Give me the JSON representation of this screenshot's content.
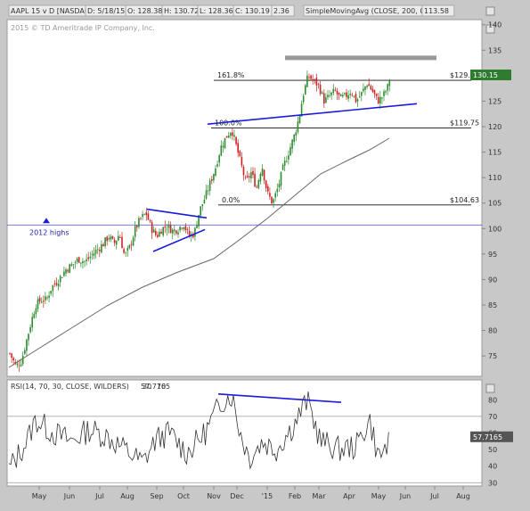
{
  "header": {
    "items": [
      "AAPL 15 v D [NASDAQ]",
      "D: 5/18/15",
      "O: 128.38",
      "H: 130.72",
      "L: 128.36",
      "C: 130.19",
      "2.36",
      "SimpleMovingAvg (CLOSE, 200, 0)",
      "113.58"
    ],
    "copyright": "2015 © TD Ameritrade IP Company, Inc."
  },
  "chart_data": [
    {
      "type": "candlestick",
      "symbol": "AAPL",
      "ylim": [
        71,
        141
      ],
      "yticks": [
        75,
        80,
        85,
        90,
        95,
        100,
        105,
        110,
        115,
        120,
        125,
        130,
        135,
        140
      ],
      "last_price_label": "130.15",
      "sma_label": "SimpleMovingAvg (CLOSE, 200, 0)",
      "x_ticks": [
        "May",
        "Jun",
        "Jul",
        "Aug",
        "Sep",
        "Oct",
        "Nov",
        "Dec",
        "'15",
        "Feb",
        "Mar",
        "Apr",
        "May",
        "Jun",
        "Jul",
        "Aug"
      ],
      "fibonacci_levels": [
        {
          "label": "161.8%",
          "price": 129.09,
          "price_label": "$129.09"
        },
        {
          "label": "100.0%",
          "price": 119.75,
          "price_label": "$119.75"
        },
        {
          "label": "0.0%",
          "price": 104.63,
          "price_label": "$104.63"
        }
      ],
      "annotations": {
        "highs_label": "2012 highs",
        "highs_level": 100.7
      },
      "colors": {
        "up": "#2e8b2e",
        "down": "#cc2222",
        "trend": "#1a1adc",
        "resistance": "#999999",
        "sma": "#666666"
      }
    },
    {
      "type": "line",
      "title": "RSI(14, 70, 30, CLOSE, WILDERS)",
      "value_label": "57.7165",
      "extra_labels": [
        "30",
        "70"
      ],
      "ylim": [
        28,
        92
      ],
      "yticks": [
        30,
        40,
        50,
        60,
        70,
        80
      ],
      "levels": [
        30,
        70
      ]
    }
  ]
}
